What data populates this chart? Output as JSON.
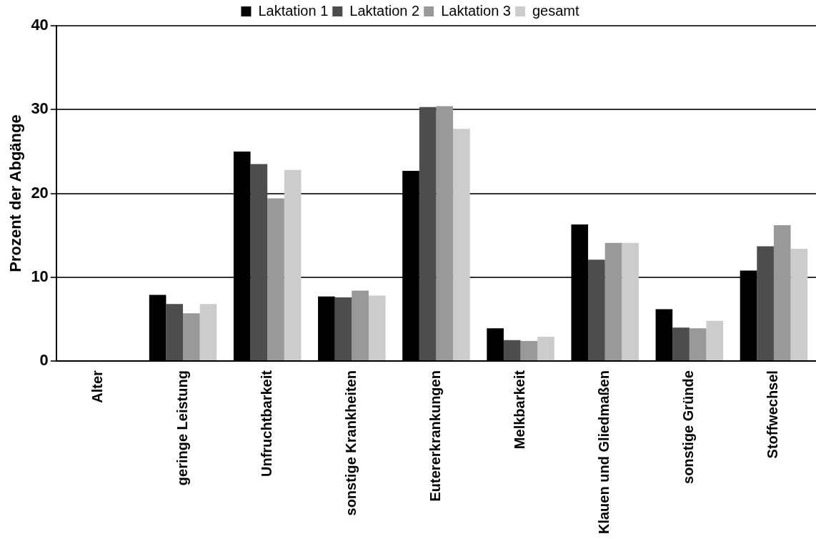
{
  "chart_data": {
    "type": "bar",
    "ylabel": "Prozent der Abgänge",
    "categories": [
      "Alter",
      "geringe Leistung",
      "Unfruchtbarkeit",
      "sonstige Krankheiten",
      "Eutererkrankungen",
      "Melkbarkeit",
      "Klauen und Gliedmaßen",
      "sonstige Gründe",
      "Stoffwechsel"
    ],
    "series": [
      {
        "name": "Laktation 1",
        "color": "#000000",
        "values": [
          0.1,
          7.9,
          25.0,
          7.7,
          22.7,
          3.9,
          16.3,
          6.2,
          10.8
        ]
      },
      {
        "name": "Laktation 2",
        "color": "#4d4d4d",
        "values": [
          0.1,
          6.8,
          23.5,
          7.6,
          30.3,
          2.5,
          12.1,
          4.0,
          13.7
        ]
      },
      {
        "name": "Laktation 3",
        "color": "#999999",
        "values": [
          0,
          5.7,
          19.4,
          8.4,
          30.4,
          2.4,
          14.1,
          3.9,
          16.2
        ]
      },
      {
        "name": "gesamt",
        "color": "#cccccc",
        "values": [
          0,
          6.8,
          22.8,
          7.8,
          27.7,
          2.9,
          14.1,
          4.8,
          13.4
        ]
      }
    ],
    "ylim": [
      0,
      40
    ],
    "yticks": [
      0,
      10,
      20,
      30,
      40
    ],
    "grid": "y",
    "legend": "top"
  }
}
